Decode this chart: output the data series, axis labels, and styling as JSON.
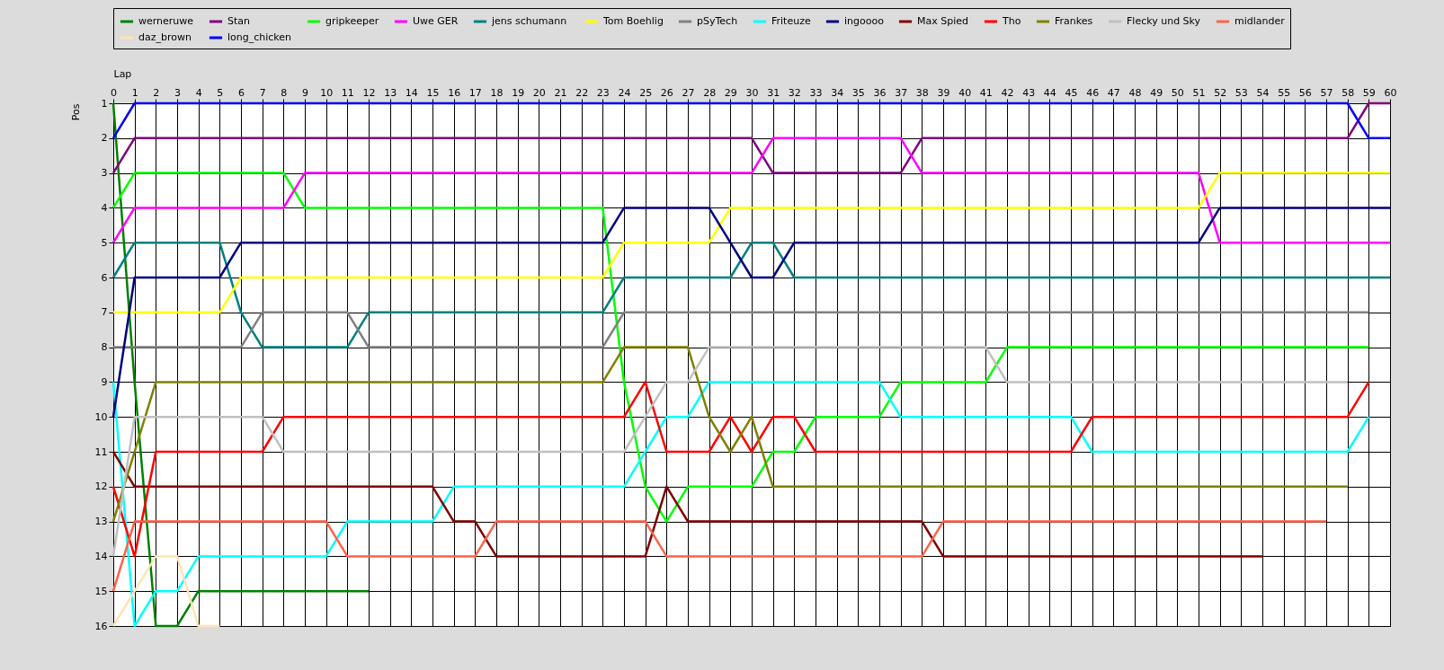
{
  "chart_data": {
    "type": "line",
    "xlabel": "Lap",
    "ylabel": "Pos",
    "x": [
      0,
      1,
      2,
      3,
      4,
      5,
      6,
      7,
      8,
      9,
      10,
      11,
      12,
      13,
      14,
      15,
      16,
      17,
      18,
      19,
      20,
      21,
      22,
      23,
      24,
      25,
      26,
      27,
      28,
      29,
      30,
      31,
      32,
      33,
      34,
      35,
      36,
      37,
      38,
      39,
      40,
      41,
      42,
      43,
      44,
      45,
      46,
      47,
      48,
      49,
      50,
      51,
      52,
      53,
      54,
      55,
      56,
      57,
      58,
      59,
      60
    ],
    "xlim": [
      0,
      60
    ],
    "xticks": [
      0,
      1,
      2,
      3,
      4,
      5,
      6,
      7,
      8,
      9,
      10,
      11,
      12,
      13,
      14,
      15,
      16,
      17,
      18,
      19,
      20,
      21,
      22,
      23,
      24,
      25,
      26,
      27,
      28,
      29,
      30,
      31,
      32,
      33,
      34,
      35,
      36,
      37,
      38,
      39,
      40,
      41,
      42,
      43,
      44,
      45,
      46,
      47,
      48,
      49,
      50,
      51,
      52,
      53,
      54,
      55,
      56,
      57,
      58,
      59,
      60
    ],
    "ylim": [
      16,
      1
    ],
    "yticks": [
      1,
      2,
      3,
      4,
      5,
      6,
      7,
      8,
      9,
      10,
      11,
      12,
      13,
      14,
      15,
      16
    ],
    "grid": true,
    "legend": "top",
    "series": [
      {
        "name": "werneruwe",
        "color": "#008000",
        "values": [
          1,
          9,
          16,
          16,
          15,
          15,
          15,
          15,
          15,
          15,
          15,
          15,
          15,
          null,
          null,
          null,
          null,
          null,
          null,
          null,
          null,
          null,
          null,
          null,
          null,
          null,
          null,
          null,
          null,
          null,
          null,
          null,
          null,
          null,
          null,
          null,
          null,
          null,
          null,
          null,
          null,
          null,
          null,
          null,
          null,
          null,
          null,
          null,
          null,
          null,
          null,
          null,
          null,
          null,
          null,
          null,
          null,
          null,
          null,
          null,
          null
        ]
      },
      {
        "name": "Stan",
        "color": "#800080",
        "values": [
          3,
          2,
          2,
          2,
          2,
          2,
          2,
          2,
          2,
          2,
          2,
          2,
          2,
          2,
          2,
          2,
          2,
          2,
          2,
          2,
          2,
          2,
          2,
          2,
          2,
          2,
          2,
          2,
          2,
          2,
          2,
          3,
          3,
          3,
          3,
          3,
          3,
          3,
          2,
          2,
          2,
          2,
          2,
          2,
          2,
          2,
          2,
          2,
          2,
          2,
          2,
          2,
          2,
          2,
          2,
          2,
          2,
          2,
          2,
          1,
          1
        ]
      },
      {
        "name": "gripkeeper",
        "color": "#00ff00",
        "values": [
          4,
          3,
          3,
          3,
          3,
          3,
          3,
          3,
          3,
          4,
          4,
          4,
          4,
          4,
          4,
          4,
          4,
          4,
          4,
          4,
          4,
          4,
          4,
          4,
          9,
          12,
          13,
          12,
          12,
          12,
          12,
          11,
          11,
          10,
          10,
          10,
          10,
          9,
          9,
          9,
          9,
          9,
          8,
          8,
          8,
          8,
          8,
          8,
          8,
          8,
          8,
          8,
          8,
          8,
          8,
          8,
          8,
          8,
          8,
          8,
          null
        ]
      },
      {
        "name": "Uwe GER",
        "color": "#ff00ff",
        "values": [
          5,
          4,
          4,
          4,
          4,
          4,
          4,
          4,
          4,
          3,
          3,
          3,
          3,
          3,
          3,
          3,
          3,
          3,
          3,
          3,
          3,
          3,
          3,
          3,
          3,
          3,
          3,
          3,
          3,
          3,
          3,
          2,
          2,
          2,
          2,
          2,
          2,
          2,
          3,
          3,
          3,
          3,
          3,
          3,
          3,
          3,
          3,
          3,
          3,
          3,
          3,
          3,
          5,
          5,
          5,
          5,
          5,
          5,
          5,
          5,
          5
        ]
      },
      {
        "name": "jens  schumann",
        "color": "#008080",
        "values": [
          6,
          5,
          5,
          5,
          5,
          5,
          7,
          8,
          8,
          8,
          8,
          8,
          7,
          7,
          7,
          7,
          7,
          7,
          7,
          7,
          7,
          7,
          7,
          7,
          6,
          6,
          6,
          6,
          6,
          6,
          5,
          5,
          6,
          6,
          6,
          6,
          6,
          6,
          6,
          6,
          6,
          6,
          6,
          6,
          6,
          6,
          6,
          6,
          6,
          6,
          6,
          6,
          6,
          6,
          6,
          6,
          6,
          6,
          6,
          6,
          6
        ]
      },
      {
        "name": "Tom Boehlig",
        "color": "#ffff00",
        "values": [
          7,
          7,
          7,
          7,
          7,
          7,
          6,
          6,
          6,
          6,
          6,
          6,
          6,
          6,
          6,
          6,
          6,
          6,
          6,
          6,
          6,
          6,
          6,
          6,
          5,
          5,
          5,
          5,
          5,
          4,
          4,
          4,
          4,
          4,
          4,
          4,
          4,
          4,
          4,
          4,
          4,
          4,
          4,
          4,
          4,
          4,
          4,
          4,
          4,
          4,
          4,
          4,
          3,
          3,
          3,
          3,
          3,
          3,
          3,
          3,
          3
        ]
      },
      {
        "name": "pSyTech",
        "color": "#808080",
        "values": [
          8,
          8,
          8,
          8,
          8,
          8,
          8,
          7,
          7,
          7,
          7,
          7,
          8,
          8,
          8,
          8,
          8,
          8,
          8,
          8,
          8,
          8,
          8,
          8,
          7,
          7,
          7,
          7,
          7,
          7,
          7,
          7,
          7,
          7,
          7,
          7,
          7,
          7,
          7,
          7,
          7,
          7,
          7,
          7,
          7,
          7,
          7,
          7,
          7,
          7,
          7,
          7,
          7,
          7,
          7,
          7,
          7,
          7,
          7,
          7,
          null
        ]
      },
      {
        "name": "Friteuze",
        "color": "#00ffff",
        "values": [
          9,
          16,
          15,
          15,
          14,
          14,
          14,
          14,
          14,
          14,
          14,
          13,
          13,
          13,
          13,
          13,
          12,
          12,
          12,
          12,
          12,
          12,
          12,
          12,
          12,
          11,
          10,
          10,
          9,
          9,
          9,
          9,
          9,
          9,
          9,
          9,
          9,
          10,
          10,
          10,
          10,
          10,
          10,
          10,
          10,
          10,
          11,
          11,
          11,
          11,
          11,
          11,
          11,
          11,
          11,
          11,
          11,
          11,
          11,
          10,
          null
        ]
      },
      {
        "name": "ingoooo",
        "color": "#000080",
        "values": [
          10,
          6,
          6,
          6,
          6,
          6,
          5,
          5,
          5,
          5,
          5,
          5,
          5,
          5,
          5,
          5,
          5,
          5,
          5,
          5,
          5,
          5,
          5,
          5,
          4,
          4,
          4,
          4,
          4,
          5,
          6,
          6,
          5,
          5,
          5,
          5,
          5,
          5,
          5,
          5,
          5,
          5,
          5,
          5,
          5,
          5,
          5,
          5,
          5,
          5,
          5,
          5,
          4,
          4,
          4,
          4,
          4,
          4,
          4,
          4,
          4
        ]
      },
      {
        "name": "Max Spied",
        "color": "#800000",
        "values": [
          11,
          12,
          12,
          12,
          12,
          12,
          12,
          12,
          12,
          12,
          12,
          12,
          12,
          12,
          12,
          12,
          13,
          13,
          14,
          14,
          14,
          14,
          14,
          14,
          14,
          14,
          12,
          13,
          13,
          13,
          13,
          13,
          13,
          13,
          13,
          13,
          13,
          13,
          13,
          14,
          14,
          14,
          14,
          14,
          14,
          14,
          14,
          14,
          14,
          14,
          14,
          14,
          14,
          14,
          14,
          null,
          null,
          null,
          null,
          null,
          null
        ]
      },
      {
        "name": "Tho",
        "color": "#ff0000",
        "values": [
          12,
          14,
          11,
          11,
          11,
          11,
          11,
          11,
          10,
          10,
          10,
          10,
          10,
          10,
          10,
          10,
          10,
          10,
          10,
          10,
          10,
          10,
          10,
          10,
          10,
          9,
          11,
          11,
          11,
          10,
          11,
          10,
          10,
          11,
          11,
          11,
          11,
          11,
          11,
          11,
          11,
          11,
          11,
          11,
          11,
          11,
          10,
          10,
          10,
          10,
          10,
          10,
          10,
          10,
          10,
          10,
          10,
          10,
          10,
          9,
          null
        ]
      },
      {
        "name": "Frankes",
        "color": "#808000",
        "values": [
          13,
          11,
          9,
          9,
          9,
          9,
          9,
          9,
          9,
          9,
          9,
          9,
          9,
          9,
          9,
          9,
          9,
          9,
          9,
          9,
          9,
          9,
          9,
          9,
          8,
          8,
          8,
          8,
          10,
          11,
          10,
          12,
          12,
          12,
          12,
          12,
          12,
          12,
          12,
          12,
          12,
          12,
          12,
          12,
          12,
          12,
          12,
          12,
          12,
          12,
          12,
          12,
          12,
          12,
          12,
          12,
          12,
          12,
          12,
          null,
          null
        ]
      },
      {
        "name": "Flecky und Sky",
        "color": "#c0c0c0",
        "values": [
          14,
          10,
          10,
          10,
          10,
          10,
          10,
          10,
          11,
          11,
          11,
          11,
          11,
          11,
          11,
          11,
          11,
          11,
          11,
          11,
          11,
          11,
          11,
          11,
          11,
          10,
          9,
          9,
          8,
          8,
          8,
          8,
          8,
          8,
          8,
          8,
          8,
          8,
          8,
          8,
          8,
          8,
          9,
          9,
          9,
          9,
          9,
          9,
          9,
          9,
          9,
          9,
          9,
          9,
          9,
          9,
          9,
          9,
          9,
          null,
          null
        ]
      },
      {
        "name": "midlander",
        "color": "#ff6347",
        "values": [
          15,
          13,
          13,
          13,
          13,
          13,
          13,
          13,
          13,
          13,
          13,
          14,
          14,
          14,
          14,
          14,
          14,
          14,
          13,
          13,
          13,
          13,
          13,
          13,
          13,
          13,
          14,
          14,
          14,
          14,
          14,
          14,
          14,
          14,
          14,
          14,
          14,
          14,
          14,
          13,
          13,
          13,
          13,
          13,
          13,
          13,
          13,
          13,
          13,
          13,
          13,
          13,
          13,
          13,
          13,
          13,
          13,
          13,
          null,
          null,
          null
        ]
      },
      {
        "name": "daz_brown",
        "color": "#ffe4b5",
        "values": [
          16,
          15,
          14,
          14,
          16,
          16,
          null,
          null,
          null,
          null,
          null,
          null,
          null,
          null,
          null,
          null,
          null,
          null,
          null,
          null,
          null,
          null,
          null,
          null,
          null,
          null,
          null,
          null,
          null,
          null,
          null,
          null,
          null,
          null,
          null,
          null,
          null,
          null,
          null,
          null,
          null,
          null,
          null,
          null,
          null,
          null,
          null,
          null,
          null,
          null,
          null,
          null,
          null,
          null,
          null,
          null,
          null,
          null,
          null,
          null,
          null
        ]
      },
      {
        "name": "long_chicken",
        "color": "#0000ff",
        "values": [
          2,
          1,
          1,
          1,
          1,
          1,
          1,
          1,
          1,
          1,
          1,
          1,
          1,
          1,
          1,
          1,
          1,
          1,
          1,
          1,
          1,
          1,
          1,
          1,
          1,
          1,
          1,
          1,
          1,
          1,
          1,
          1,
          1,
          1,
          1,
          1,
          1,
          1,
          1,
          1,
          1,
          1,
          1,
          1,
          1,
          1,
          1,
          1,
          1,
          1,
          1,
          1,
          1,
          1,
          1,
          1,
          1,
          1,
          1,
          2,
          2
        ]
      }
    ]
  }
}
